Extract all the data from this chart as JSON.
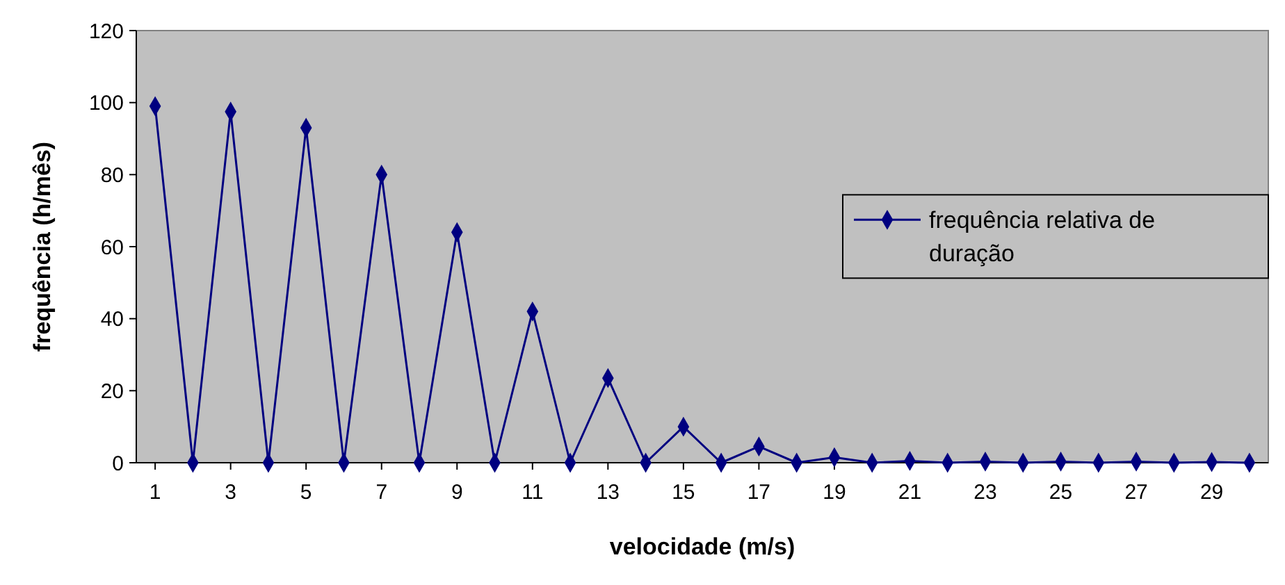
{
  "chart_data": {
    "type": "line",
    "xlabel": "velocidade (m/s)",
    "ylabel": "frequência (h/mês)",
    "x": [
      1,
      2,
      3,
      4,
      5,
      6,
      7,
      8,
      9,
      10,
      11,
      12,
      13,
      14,
      15,
      16,
      17,
      18,
      19,
      20,
      21,
      22,
      23,
      24,
      25,
      26,
      27,
      28,
      29,
      30
    ],
    "xlim": [
      0.5,
      30.5
    ],
    "xticks": [
      1,
      3,
      5,
      7,
      9,
      11,
      13,
      15,
      17,
      19,
      21,
      23,
      25,
      27,
      29
    ],
    "series": [
      {
        "name": "frequência relativa de duração",
        "color": "#000080",
        "values": [
          99,
          0,
          97.5,
          0,
          93,
          0,
          80,
          0,
          64,
          0,
          42,
          0,
          23.5,
          0,
          10,
          0,
          4.5,
          0,
          1.5,
          0,
          0.5,
          0,
          0.3,
          0,
          0.3,
          0,
          0.3,
          0,
          0.2,
          0
        ]
      }
    ],
    "ylim": [
      0,
      120
    ],
    "yticks": [
      0,
      20,
      40,
      60,
      80,
      100,
      120
    ],
    "grid": false,
    "legend": "right",
    "marker": "diamond",
    "line_style": "solid"
  }
}
